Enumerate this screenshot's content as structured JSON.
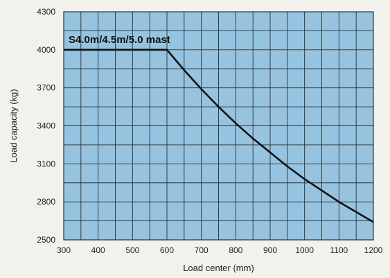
{
  "chart_data": {
    "type": "line",
    "xlabel": "Load center (mm)",
    "ylabel": "Load capacity (kg)",
    "xlim": [
      300,
      1200
    ],
    "ylim": [
      2500,
      4300
    ],
    "xticks": [
      "300",
      "400",
      "500",
      "600",
      "700",
      "800",
      "900",
      "1000",
      "1100",
      "1200"
    ],
    "yticks": [
      "2500",
      "2800",
      "3100",
      "3400",
      "3700",
      "4000",
      "4300"
    ],
    "grid": true,
    "colors": {
      "plot_bg": "#96c4e0",
      "grid": "#2d2d2d",
      "line": "#111111",
      "page_bg": "#f1f1ee"
    },
    "series": [
      {
        "name": "S4.0m/4.5m/5.0 mast",
        "x": [
          300,
          600,
          650,
          700,
          750,
          800,
          850,
          900,
          950,
          1000,
          1050,
          1100,
          1150,
          1200
        ],
        "y": [
          4000,
          4000,
          3840,
          3690,
          3550,
          3420,
          3300,
          3190,
          3080,
          2980,
          2890,
          2800,
          2720,
          2640
        ]
      }
    ]
  }
}
